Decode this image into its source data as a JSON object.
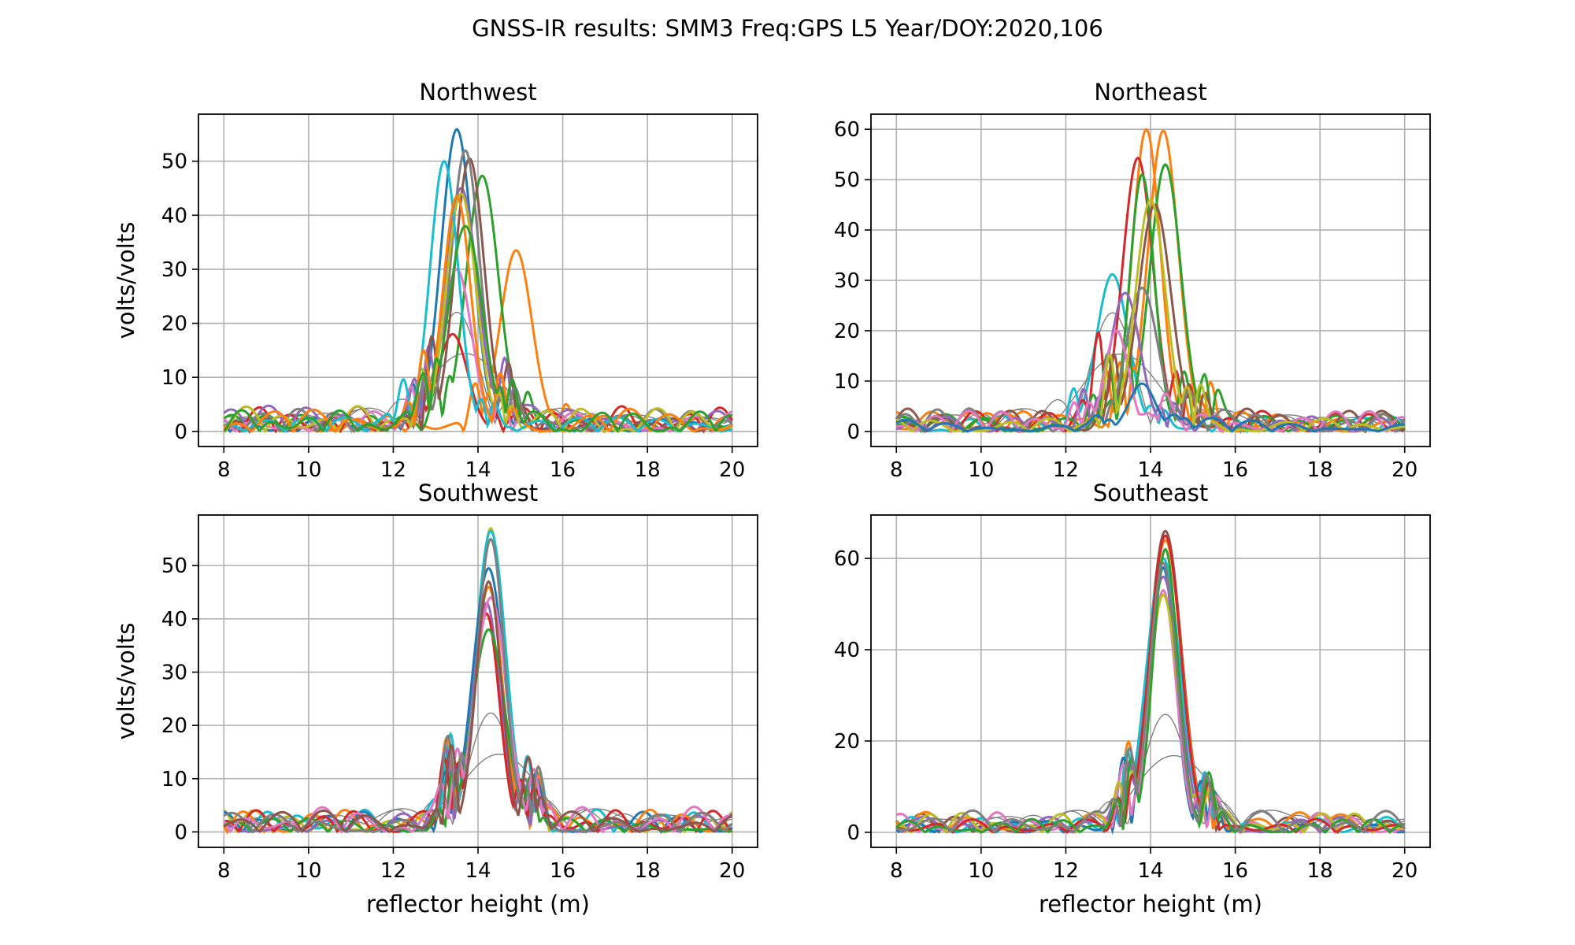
{
  "figure_title": "GNSS-IR results: SMM3 Freq:GPS L5 Year/DOY:2020,106",
  "colors": {
    "palette": [
      "#1f77b4",
      "#ff7f0e",
      "#2ca02c",
      "#d62728",
      "#9467bd",
      "#8c564b",
      "#e377c2",
      "#7f7f7f",
      "#bcbd22",
      "#17becf"
    ],
    "reference_line": "#808080",
    "grid": "#b0b0b0"
  },
  "chart_data": [
    {
      "type": "line",
      "title": "Northwest",
      "xlabel": "",
      "ylabel": "volts/volts",
      "xlim": [
        7.4,
        20.6
      ],
      "ylim": [
        -2.8,
        58.7
      ],
      "xticks": [
        8,
        10,
        12,
        14,
        16,
        18,
        20
      ],
      "yticks": [
        0,
        10,
        20,
        30,
        40,
        50
      ],
      "grid": true,
      "series_peaks": [
        {
          "peak_x": 13.5,
          "peak_y": 55.9,
          "color": "#1f77b4"
        },
        {
          "peak_x": 14.9,
          "peak_y": 33.5,
          "color": "#ff7f0e"
        },
        {
          "peak_x": 14.1,
          "peak_y": 47.3,
          "color": "#2ca02c"
        },
        {
          "peak_x": 13.4,
          "peak_y": 18.0,
          "color": "#d62728"
        },
        {
          "peak_x": 13.6,
          "peak_y": 45.0,
          "color": "#9467bd"
        },
        {
          "peak_x": 13.8,
          "peak_y": 50.5,
          "color": "#8c564b"
        },
        {
          "peak_x": 13.5,
          "peak_y": 30.0,
          "color": "#e377c2"
        },
        {
          "peak_x": 13.7,
          "peak_y": 52.0,
          "color": "#7f7f7f"
        },
        {
          "peak_x": 13.6,
          "peak_y": 44.0,
          "color": "#bcbd22"
        },
        {
          "peak_x": 13.2,
          "peak_y": 50.0,
          "color": "#17becf"
        },
        {
          "peak_x": 13.5,
          "peak_y": 43.5,
          "color": "#ff7f0e"
        },
        {
          "peak_x": 13.7,
          "peak_y": 38.0,
          "color": "#2ca02c"
        }
      ]
    },
    {
      "type": "line",
      "title": "Northeast",
      "xlabel": "",
      "ylabel": "",
      "xlim": [
        7.4,
        20.6
      ],
      "ylim": [
        -3.0,
        63.0
      ],
      "xticks": [
        8,
        10,
        12,
        14,
        16,
        18,
        20
      ],
      "yticks": [
        0,
        10,
        20,
        30,
        40,
        50,
        60
      ],
      "grid": true,
      "series_peaks": [
        {
          "peak_x": 13.1,
          "peak_y": 31.2,
          "color": "#17becf"
        },
        {
          "peak_x": 13.9,
          "peak_y": 60.0,
          "color": "#ff7f0e"
        },
        {
          "peak_x": 14.3,
          "peak_y": 59.7,
          "color": "#ff7f0e"
        },
        {
          "peak_x": 13.7,
          "peak_y": 54.3,
          "color": "#d62728"
        },
        {
          "peak_x": 13.8,
          "peak_y": 51.0,
          "color": "#2ca02c"
        },
        {
          "peak_x": 14.35,
          "peak_y": 53.0,
          "color": "#2ca02c"
        },
        {
          "peak_x": 14.1,
          "peak_y": 45.0,
          "color": "#8c564b"
        },
        {
          "peak_x": 13.4,
          "peak_y": 27.5,
          "color": "#9467bd"
        },
        {
          "peak_x": 13.8,
          "peak_y": 28.5,
          "color": "#7f7f7f"
        },
        {
          "peak_x": 13.2,
          "peak_y": 20.0,
          "color": "#e377c2"
        },
        {
          "peak_x": 14.0,
          "peak_y": 46.0,
          "color": "#bcbd22"
        },
        {
          "peak_x": 13.8,
          "peak_y": 9.5,
          "color": "#1f77b4"
        }
      ]
    },
    {
      "type": "line",
      "title": "Southwest",
      "xlabel": "reflector height (m)",
      "ylabel": "volts/volts",
      "xlim": [
        7.4,
        20.6
      ],
      "ylim": [
        -2.9,
        59.5
      ],
      "xticks": [
        8,
        10,
        12,
        14,
        16,
        18,
        20
      ],
      "yticks": [
        0,
        10,
        20,
        30,
        40,
        50
      ],
      "grid": true,
      "series_peaks": [
        {
          "peak_x": 14.3,
          "peak_y": 57.0,
          "color": "#bcbd22"
        },
        {
          "peak_x": 14.3,
          "peak_y": 56.5,
          "color": "#17becf"
        },
        {
          "peak_x": 14.25,
          "peak_y": 49.5,
          "color": "#1f77b4"
        },
        {
          "peak_x": 14.25,
          "peak_y": 46.0,
          "color": "#ff7f0e"
        },
        {
          "peak_x": 14.2,
          "peak_y": 43.0,
          "color": "#9467bd"
        },
        {
          "peak_x": 14.2,
          "peak_y": 41.0,
          "color": "#d62728"
        },
        {
          "peak_x": 14.25,
          "peak_y": 38.0,
          "color": "#2ca02c"
        },
        {
          "peak_x": 14.3,
          "peak_y": 44.0,
          "color": "#e377c2"
        },
        {
          "peak_x": 14.3,
          "peak_y": 55.0,
          "color": "#7f7f7f"
        },
        {
          "peak_x": 14.25,
          "peak_y": 47.0,
          "color": "#8c564b"
        }
      ]
    },
    {
      "type": "line",
      "title": "Southeast",
      "xlabel": "reflector height (m)",
      "ylabel": "",
      "xlim": [
        7.4,
        20.6
      ],
      "ylim": [
        -3.3,
        69.5
      ],
      "xticks": [
        8,
        10,
        12,
        14,
        16,
        18,
        20
      ],
      "yticks": [
        0,
        20,
        40,
        60
      ],
      "grid": true,
      "series_peaks": [
        {
          "peak_x": 14.35,
          "peak_y": 66.0,
          "color": "#8c564b"
        },
        {
          "peak_x": 14.35,
          "peak_y": 64.0,
          "color": "#ff7f0e"
        },
        {
          "peak_x": 14.3,
          "peak_y": 60.0,
          "color": "#17becf"
        },
        {
          "peak_x": 14.3,
          "peak_y": 58.0,
          "color": "#1f77b4"
        },
        {
          "peak_x": 14.3,
          "peak_y": 56.0,
          "color": "#9467bd"
        },
        {
          "peak_x": 14.3,
          "peak_y": 53.0,
          "color": "#e377c2"
        },
        {
          "peak_x": 14.3,
          "peak_y": 52.0,
          "color": "#bcbd22"
        },
        {
          "peak_x": 14.35,
          "peak_y": 65.0,
          "color": "#d62728"
        },
        {
          "peak_x": 14.35,
          "peak_y": 62.0,
          "color": "#2ca02c"
        },
        {
          "peak_x": 14.3,
          "peak_y": 59.0,
          "color": "#7f7f7f"
        }
      ]
    }
  ]
}
